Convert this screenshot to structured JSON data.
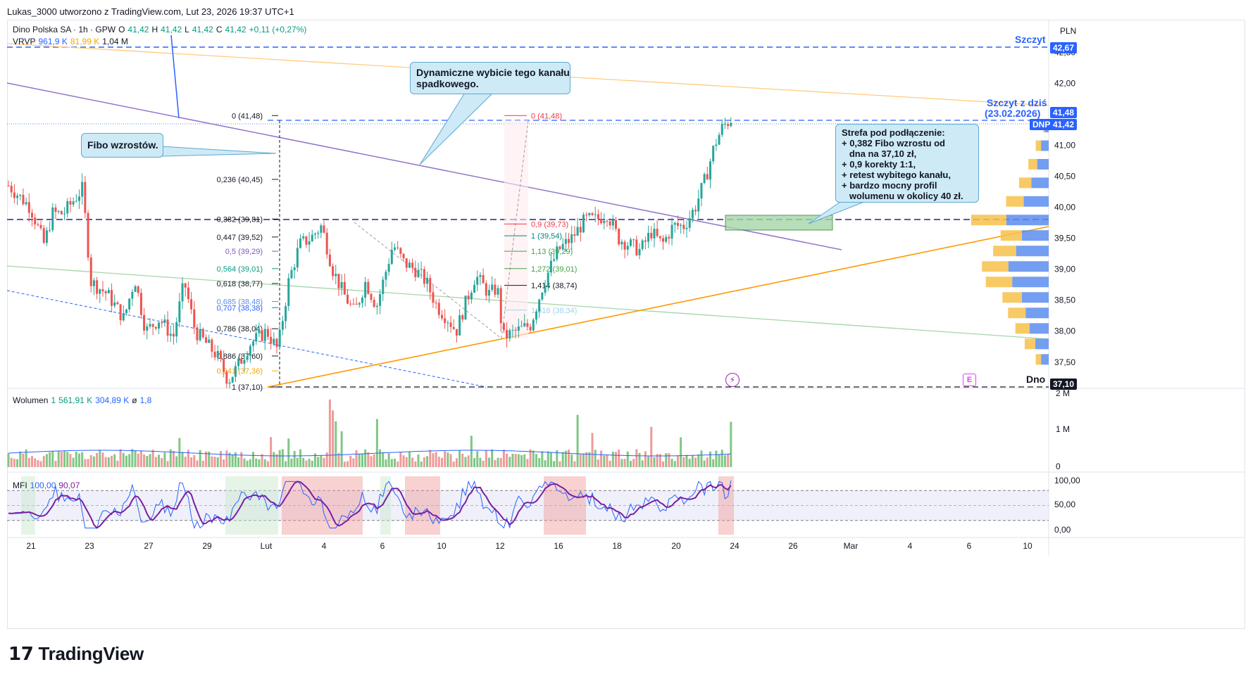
{
  "header": {
    "text": "Lukas_3000 utworzono z TradingView.com, Lut 23, 2026 19:37 UTC+1"
  },
  "legend": {
    "symbol": "Dino Polska SA · 1h · GPW",
    "o_label": "O",
    "o": "41,42",
    "h_label": "H",
    "h": "41,42",
    "l_label": "L",
    "l": "41,42",
    "c_label": "C",
    "c": "41,42",
    "change": "+0,11 (+0,27%)",
    "vrvp_label": "VRVP",
    "vrvp_1": "961,9 K",
    "vrvp_2": "81,99 K",
    "vrvp_3": "1,04 M"
  },
  "volume_legend": {
    "label": "Wolumen",
    "v1": "1",
    "v2": "561,91 K",
    "v3": "304,89 K",
    "sym": "ø",
    "v4": "1,8"
  },
  "mfi_legend": {
    "label": "MFI",
    "v1": "100,00",
    "v2": "90,07"
  },
  "currency": "PLN",
  "annotations": {
    "peak_label": "Szczyt",
    "peak_today_1": "Szczyt z dziś",
    "peak_today_2": "(23.02.2026)",
    "bottom_label": "Dno",
    "fibo_note": "Fibo wzrostów.",
    "channel_note_1": "Dynamiczne wybicie tego kanału",
    "channel_note_2": "spadkowego.",
    "zone_note": [
      "Strefa pod podłączenie:",
      "+ 0,382 Fibo wzrostu od",
      "   dna na 37,10 zł,",
      "+ 0,9 korekty 1:1,",
      "+ retest wybitego kanału,",
      "+ bardzo mocny profil",
      "   wolumenu w okolicy 40 zł."
    ]
  },
  "price_badges": {
    "peak": "42,67",
    "high": "41,48",
    "ticker": "DNP",
    "last": "41,42",
    "low": "37,10"
  },
  "volume_axis": [
    "2 M",
    "1 M",
    "0"
  ],
  "mfi_axis": [
    "100,00",
    "50,00",
    "0,00"
  ],
  "fib_main": [
    {
      "label": "0 (41,48)",
      "value": 41.48,
      "color": "#131722"
    },
    {
      "label": "0,236 (40,45)",
      "value": 40.45,
      "color": "#131722"
    },
    {
      "label": "0,382 (39,81)",
      "value": 39.81,
      "color": "#131722"
    },
    {
      "label": "0,447 (39,52)",
      "value": 39.52,
      "color": "#131722"
    },
    {
      "label": "0,5 (39,29)",
      "value": 39.29,
      "color": "#7e57c2"
    },
    {
      "label": "0,564 (39,01)",
      "value": 39.01,
      "color": "#089981"
    },
    {
      "label": "0,618 (38,77)",
      "value": 38.77,
      "color": "#131722"
    },
    {
      "label": "0,685 (38,48)",
      "value": 38.48,
      "color": "#5b8def"
    },
    {
      "label": "0,707 (38,38)",
      "value": 38.38,
      "color": "#2962ff"
    },
    {
      "label": "0,786 (38,04)",
      "value": 38.04,
      "color": "#131722"
    },
    {
      "label": "0,886 (37,60)",
      "value": 37.6,
      "color": "#131722"
    },
    {
      "label": "0,941 (37,36)",
      "value": 37.36,
      "color": "#f7a600"
    },
    {
      "label": "1 (37,10)",
      "value": 37.1,
      "color": "#131722"
    }
  ],
  "fib_ext": [
    {
      "label": "0 (41,48)",
      "value": 41.48,
      "color": "#f23645"
    },
    {
      "label": "0,9 (39,73)",
      "value": 39.73,
      "color": "#f23645"
    },
    {
      "label": "1 (39,54)",
      "value": 39.54,
      "color": "#00897b"
    },
    {
      "label": "1,13 (39,29)",
      "value": 39.29,
      "color": "#43a047"
    },
    {
      "label": "1,272 (39,01)",
      "value": 39.01,
      "color": "#43a047"
    },
    {
      "label": "1,414 (38,74)",
      "value": 38.74,
      "color": "#131722"
    },
    {
      "label": "1,618 (38,34)",
      "value": 38.34,
      "color": "#9fd3ea"
    }
  ],
  "chart_data": {
    "type": "candlestick",
    "symbol": "DNP",
    "timeframe": "1h",
    "currency": "PLN",
    "ylim": [
      37.1,
      42.8
    ],
    "y_ticks": [
      "42,50",
      "42,00",
      "41,50",
      "41,00",
      "40,50",
      "40,00",
      "39,50",
      "39,00",
      "38,50",
      "38,00",
      "37,50"
    ],
    "x_ticks": [
      "21",
      "23",
      "27",
      "29",
      "Lut",
      "4",
      "6",
      "10",
      "12",
      "16",
      "18",
      "20",
      "24",
      "26",
      "Mar",
      "4",
      "6",
      "10"
    ],
    "key_levels": {
      "peak": 42.67,
      "high": 41.48,
      "last": 41.42,
      "bottom": 37.1
    },
    "path": [
      [
        0,
        40.35
      ],
      [
        8,
        40.0
      ],
      [
        13,
        39.4
      ],
      [
        16,
        39.9
      ],
      [
        20,
        39.9
      ],
      [
        27,
        40.3
      ],
      [
        30,
        38.8
      ],
      [
        36,
        38.6
      ],
      [
        42,
        38.2
      ],
      [
        46,
        38.85
      ],
      [
        50,
        38.0
      ],
      [
        55,
        38.2
      ],
      [
        60,
        37.9
      ],
      [
        64,
        38.8
      ],
      [
        68,
        38.0
      ],
      [
        72,
        37.8
      ],
      [
        76,
        37.6
      ],
      [
        80,
        37.2
      ],
      [
        83,
        37.4
      ],
      [
        88,
        37.8
      ],
      [
        94,
        38.0
      ],
      [
        98,
        37.7
      ],
      [
        102,
        38.8
      ],
      [
        106,
        39.4
      ],
      [
        110,
        39.5
      ],
      [
        114,
        39.7
      ],
      [
        118,
        39.0
      ],
      [
        122,
        38.6
      ],
      [
        126,
        38.3
      ],
      [
        130,
        38.8
      ],
      [
        134,
        38.4
      ],
      [
        140,
        39.4
      ],
      [
        144,
        39.1
      ],
      [
        148,
        39.0
      ],
      [
        152,
        38.8
      ],
      [
        156,
        38.4
      ],
      [
        160,
        38.2
      ],
      [
        163,
        38.0
      ],
      [
        166,
        38.4
      ],
      [
        170,
        38.9
      ],
      [
        175,
        38.6
      ],
      [
        178,
        38.7
      ],
      [
        180,
        37.9
      ],
      [
        185,
        38.0
      ],
      [
        190,
        38.1
      ],
      [
        195,
        38.8
      ],
      [
        200,
        39.3
      ],
      [
        205,
        39.5
      ],
      [
        210,
        39.8
      ],
      [
        214,
        39.8
      ],
      [
        218,
        39.9
      ],
      [
        222,
        39.5
      ],
      [
        226,
        39.4
      ],
      [
        230,
        39.3
      ],
      [
        234,
        39.6
      ],
      [
        238,
        39.4
      ],
      [
        242,
        39.7
      ],
      [
        246,
        39.7
      ],
      [
        250,
        40.0
      ],
      [
        254,
        40.5
      ],
      [
        257,
        41.0
      ],
      [
        260,
        41.3
      ],
      [
        263,
        41.42
      ]
    ],
    "trendlines": [
      {
        "name": "kanał spadkowy",
        "from": [
          0,
          41.1
        ],
        "to": [
          300,
          39.1
        ]
      },
      {
        "name": "wsparcie",
        "from": [
          90,
          37.1
        ],
        "to": [
          372,
          39.75
        ]
      }
    ],
    "volume_profile": {
      "price_levels": [
        41.3,
        41.0,
        40.7,
        40.4,
        40.1,
        39.8,
        39.55,
        39.3,
        39.05,
        38.8,
        38.55,
        38.3,
        38.05,
        37.8,
        37.55
      ],
      "up": [
        2,
        4,
        6,
        9,
        13,
        22,
        14,
        17,
        21,
        19,
        14,
        12,
        10,
        7,
        4
      ],
      "down": [
        1,
        3,
        5,
        7,
        10,
        20,
        12,
        13,
        15,
        15,
        11,
        10,
        8,
        6,
        3
      ]
    },
    "volume": {
      "ylim": [
        0,
        2.0
      ],
      "unit": "M"
    },
    "mfi": {
      "ylim": [
        0,
        100
      ],
      "bands": [
        20,
        80
      ],
      "last": [
        100.0,
        90.07
      ]
    }
  }
}
